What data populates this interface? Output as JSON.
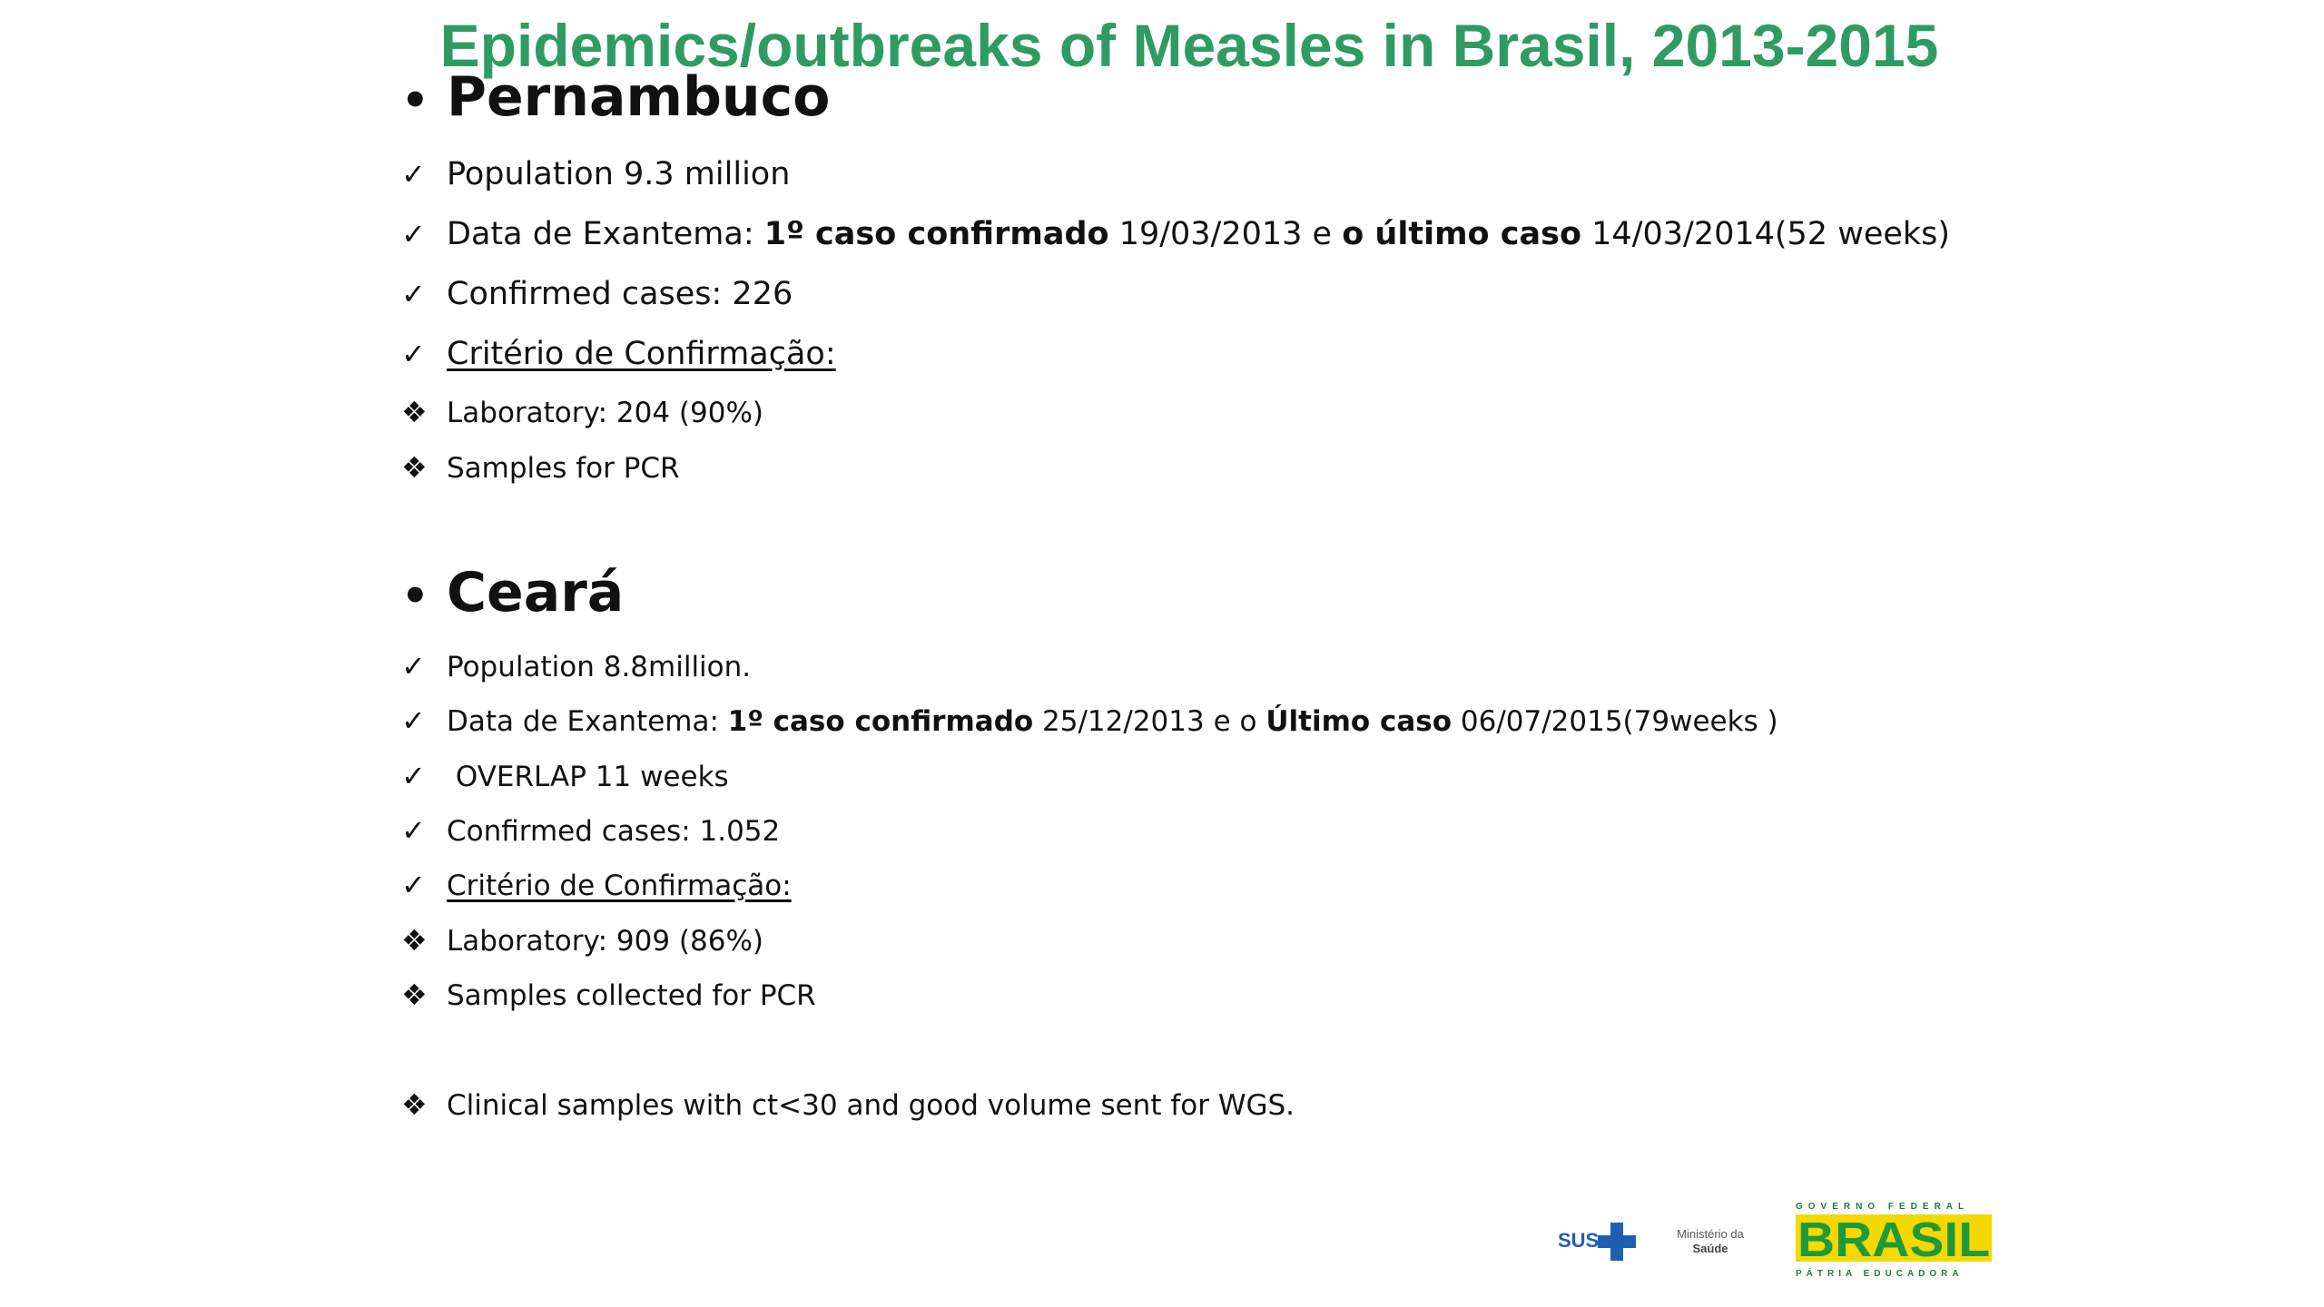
{
  "colors": {
    "title": "#2e9b63",
    "text": "#111111",
    "brasil_green": "#1e9a3b",
    "brasil_yellow": "#f4d800",
    "sus_blue": "#1f5fb3"
  },
  "title": "Epidemics/outbreaks of Measles in  Brasil, 2013-2015",
  "sections": [
    {
      "heading": "Pernambuco",
      "items": [
        {
          "mark": "check-icon",
          "text": "Population 9.3 million"
        },
        {
          "mark": "check-icon",
          "parts": [
            "Data de Exantema:  ",
            "1º caso confirmado",
            " 19/03/2013 e ",
            "o último caso",
            " 14/03/2014(52 weeks)"
          ]
        },
        {
          "mark": "check-icon",
          "text": "Confirmed cases: 226"
        },
        {
          "mark": "check-icon",
          "text": "Critério de Confirmação:"
        },
        {
          "mark": "diamond-bullet-icon",
          "text": "Laboratory: 204 (90%)"
        },
        {
          "mark": "diamond-bullet-icon",
          "text": "Samples for PCR"
        }
      ]
    },
    {
      "heading": "Ceará",
      "items": [
        {
          "mark": "check-icon",
          "text": "Population 8.8million."
        },
        {
          "mark": "check-icon",
          "parts": [
            "Data de Exantema: ",
            "1º caso confirmado",
            " 25/12/2013  e o ",
            "Último caso",
            " 06/07/2015(79weeks )"
          ]
        },
        {
          "mark": "check-icon",
          "text": " OVERLAP 11 weeks"
        },
        {
          "mark": "check-icon",
          "text": "Confirmed cases: 1.052"
        },
        {
          "mark": "check-icon",
          "text": "Critério de Confirmação:"
        },
        {
          "mark": "diamond-bullet-icon",
          "text": "Laboratory: 909 (86%)"
        },
        {
          "mark": "diamond-bullet-icon",
          "text": "Samples collected for PCR"
        }
      ]
    }
  ],
  "footer_note": "Clinical samples with ct<30 and good volume sent for WGS.",
  "logos": {
    "sus": "SUS",
    "ministerio_line1": "Ministério da",
    "ministerio_line2": "Saúde",
    "governo": "GOVERNO FEDERAL",
    "brasil": "BRASIL",
    "patria": "PÁTRIA EDUCADORA"
  }
}
